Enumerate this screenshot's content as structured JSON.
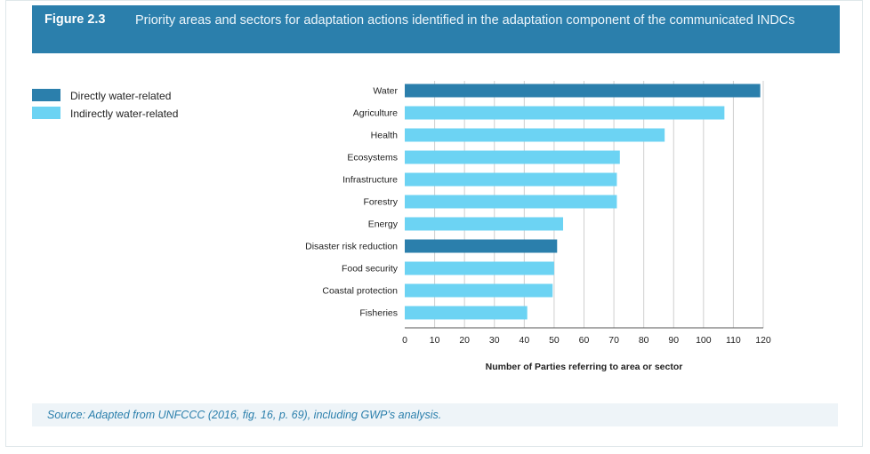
{
  "header": {
    "figure_number": "Figure 2.3",
    "title": "Priority areas and sectors for adaptation actions identified in the adaptation component of the communicated INDCs"
  },
  "legend": [
    {
      "label": "Directly water-related",
      "color": "#2b7fac"
    },
    {
      "label": "Indirectly water-related",
      "color": "#6cd3f3"
    }
  ],
  "chart_data": {
    "type": "bar",
    "orientation": "horizontal",
    "categories": [
      "Water",
      "Agriculture",
      "Health",
      "Ecosystems",
      "Infrastructure",
      "Forestry",
      "Energy",
      "Disaster risk reduction",
      "Food security",
      "Coastal protection",
      "Fisheries"
    ],
    "values": [
      119,
      107,
      87,
      72,
      71,
      71,
      53,
      51,
      50,
      49.5,
      41
    ],
    "groups": [
      "Directly water-related",
      "Indirectly water-related",
      "Indirectly water-related",
      "Indirectly water-related",
      "Indirectly water-related",
      "Indirectly water-related",
      "Indirectly water-related",
      "Directly water-related",
      "Indirectly water-related",
      "Indirectly water-related",
      "Indirectly water-related"
    ],
    "xlabel": "Number of Parties referring to area or sector",
    "xlim": [
      0,
      120
    ],
    "xticks": [
      0,
      10,
      20,
      30,
      40,
      50,
      60,
      70,
      80,
      90,
      100,
      110,
      120
    ],
    "grid": "vertical",
    "legend_position": "left"
  },
  "source": "Source: Adapted from UNFCCC (2016, fig. 16, p. 69), including GWP’s analysis."
}
